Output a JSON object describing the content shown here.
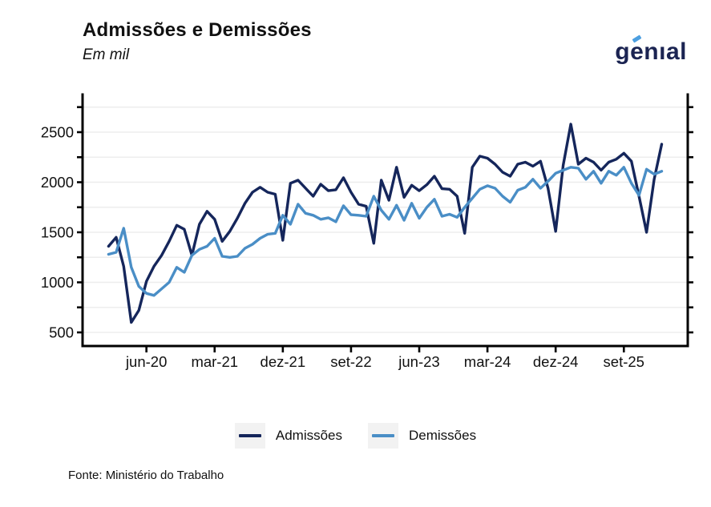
{
  "header": {
    "title": "Admissões e Demissões",
    "subtitle": "Em mil",
    "logo_text": "genial"
  },
  "footer": {
    "source": "Fonte: Ministério do Trabalho"
  },
  "colors": {
    "admissoes": "#15265B",
    "demissoes": "#4A8EC6",
    "logo_navy": "#1B2452",
    "logo_accent": "#4C9FE0",
    "gridline": "#ededed",
    "axis": "#000000"
  },
  "chart_data": {
    "type": "line",
    "title": "Admissões e Demissões",
    "subtitle": "Em mil",
    "unit": "thousands",
    "grid": "horizontal",
    "legend_position": "bottom",
    "y_ticks": [
      500,
      1000,
      1500,
      2000,
      2500
    ],
    "y_minor_step": 250,
    "y_axis_range": [
      364,
      2876
    ],
    "x_tick_labels": [
      "jun-20",
      "mar-21",
      "dez-21",
      "set-22",
      "jun-23",
      "mar-24",
      "dez-24",
      "set-25"
    ],
    "x_tick_indices": [
      5,
      14,
      23,
      32,
      41,
      50,
      59,
      68
    ],
    "x": [
      "jan-20",
      "fev-20",
      "mar-20",
      "abr-20",
      "mai-20",
      "jun-20",
      "jul-20",
      "ago-20",
      "set-20",
      "out-20",
      "nov-20",
      "dez-20",
      "jan-21",
      "fev-21",
      "mar-21",
      "abr-21",
      "mai-21",
      "jun-21",
      "jul-21",
      "ago-21",
      "set-21",
      "out-21",
      "nov-21",
      "dez-21",
      "jan-22",
      "fev-22",
      "mar-22",
      "abr-22",
      "mai-22",
      "jun-22",
      "jul-22",
      "ago-22",
      "set-22",
      "out-22",
      "nov-22",
      "dez-22",
      "jan-23",
      "fev-23",
      "mar-23",
      "abr-23",
      "mai-23",
      "jun-23",
      "jul-23",
      "ago-23",
      "set-23",
      "out-23",
      "nov-23",
      "dez-23",
      "jan-24",
      "fev-24",
      "mar-24",
      "abr-24",
      "mai-24",
      "jun-24",
      "jul-24",
      "ago-24",
      "set-24",
      "out-24",
      "nov-24",
      "dez-24",
      "jan-25",
      "fev-25",
      "mar-25",
      "abr-25",
      "mai-25",
      "jun-25",
      "jul-25",
      "ago-25",
      "set-25",
      "out-25",
      "nov-25",
      "dez-25",
      "jan-26",
      "fev-26"
    ],
    "series": [
      {
        "name": "Admissões",
        "color": "#15265B",
        "values": [
          1360,
          1450,
          1160,
          600,
          720,
          1010,
          1160,
          1270,
          1410,
          1570,
          1530,
          1270,
          1580,
          1710,
          1630,
          1410,
          1510,
          1640,
          1790,
          1900,
          1950,
          1900,
          1880,
          1420,
          1990,
          2020,
          1940,
          1860,
          1980,
          1915,
          1925,
          2045,
          1900,
          1780,
          1760,
          1390,
          2020,
          1820,
          2150,
          1850,
          1970,
          1915,
          1975,
          2060,
          1935,
          1930,
          1860,
          1490,
          2150,
          2260,
          2240,
          2180,
          2100,
          2060,
          2180,
          2200,
          2160,
          2210,
          1940,
          1510,
          2170,
          2580,
          2180,
          2240,
          2200,
          2120,
          2200,
          2230,
          2290,
          2210,
          1860,
          1500,
          2030,
          2380
        ]
      },
      {
        "name": "Demissões",
        "color": "#4A8EC6",
        "values": [
          1280,
          1300,
          1540,
          1150,
          960,
          890,
          870,
          935,
          1000,
          1150,
          1100,
          1270,
          1330,
          1360,
          1440,
          1260,
          1250,
          1260,
          1340,
          1380,
          1440,
          1480,
          1490,
          1670,
          1580,
          1780,
          1690,
          1670,
          1630,
          1645,
          1605,
          1765,
          1675,
          1670,
          1660,
          1860,
          1720,
          1630,
          1770,
          1620,
          1790,
          1640,
          1750,
          1830,
          1660,
          1680,
          1650,
          1750,
          1840,
          1930,
          1965,
          1940,
          1860,
          1800,
          1920,
          1950,
          2030,
          1940,
          2010,
          2090,
          2120,
          2150,
          2140,
          2030,
          2110,
          1990,
          2110,
          2070,
          2150,
          1990,
          1870,
          2130,
          2080,
          2110
        ]
      }
    ]
  }
}
